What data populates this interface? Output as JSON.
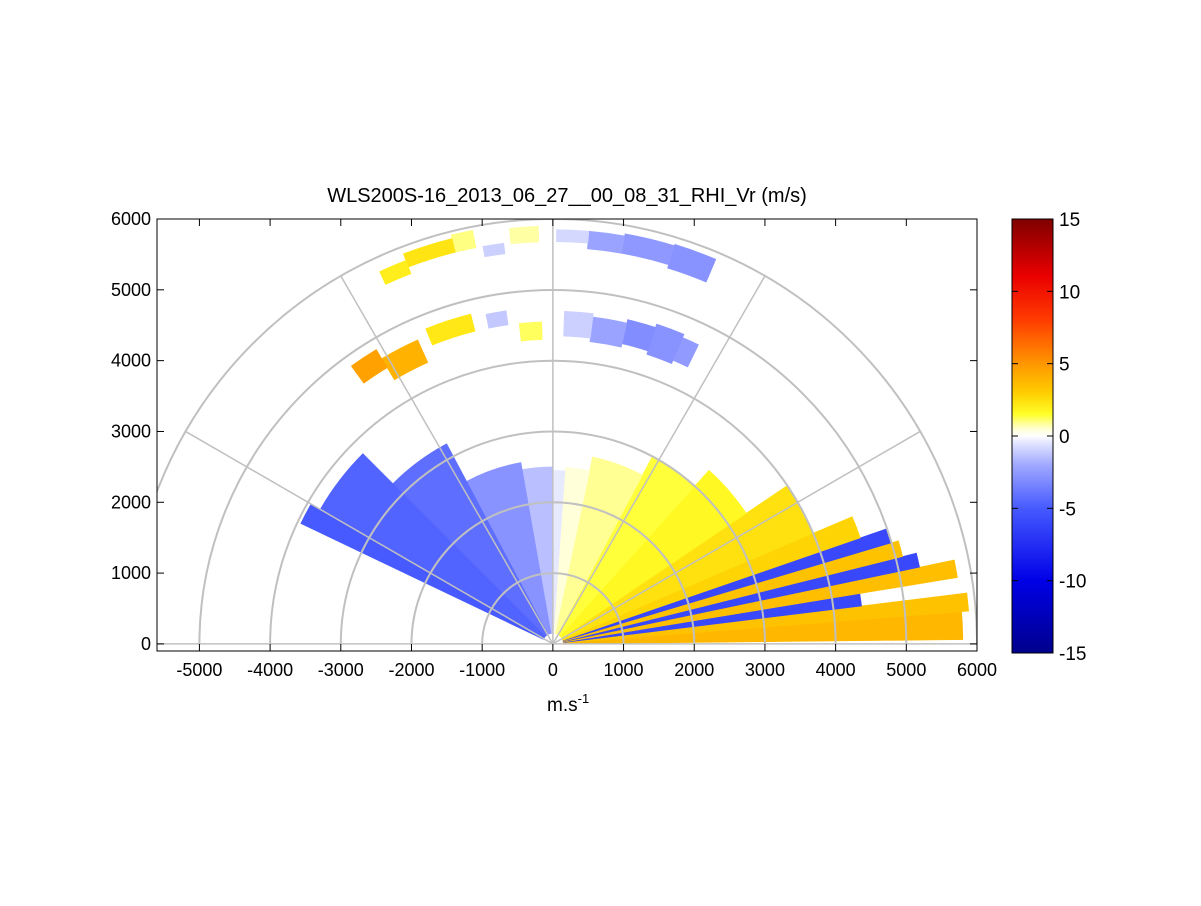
{
  "chart_data": {
    "type": "heatmap",
    "subtype": "polar-rhi-sector",
    "title": "WLS200S-16_2013_06_27__00_08_31_RHI_Vr (m/s)",
    "xlabel_main": "m.s",
    "xlabel_sup": "-1",
    "ylabel": "",
    "xlim": [
      -5600,
      6000
    ],
    "ylim": [
      -100,
      6000
    ],
    "xticks": [
      -5000,
      -4000,
      -3000,
      -2000,
      -1000,
      0,
      1000,
      2000,
      3000,
      4000,
      5000,
      6000
    ],
    "yticks": [
      0,
      1000,
      2000,
      3000,
      4000,
      5000,
      6000
    ],
    "grid": true,
    "polar_grid": {
      "range_rings_m": [
        1000,
        2000,
        3000,
        4000,
        5000,
        6000
      ],
      "spokes_deg": [
        0,
        30,
        60,
        90,
        120,
        150,
        180
      ]
    },
    "colorbar": {
      "min": -15,
      "max": 15,
      "ticks": [
        15,
        10,
        5,
        0,
        -5,
        -10,
        -15
      ],
      "position": "right",
      "colormap": "blue-white-yellow-red"
    },
    "colors": {
      "grid": "#c0c0c0",
      "neg_strong": "#0000a0",
      "neg_mid": "#3c4cff",
      "neg_light": "#c8ccff",
      "zero": "#ffffff",
      "pos_light": "#ffff60",
      "pos_mid": "#ffb400",
      "pos_strong": "#ff2000",
      "pos_max": "#800000"
    },
    "sectors": [
      {
        "az_from": 0.6,
        "az_to": 4.5,
        "r_from": 150,
        "r_to": 5800,
        "vr": 3.8
      },
      {
        "az_from": 4.5,
        "az_to": 7.0,
        "r_from": 150,
        "r_to": 5900,
        "vr": 3.4
      },
      {
        "az_from": 7.0,
        "az_to": 9.3,
        "r_from": 150,
        "r_to": 4400,
        "vr": -6.0
      },
      {
        "az_from": 9.3,
        "az_to": 11.8,
        "r_from": 150,
        "r_to": 5800,
        "vr": 3.5
      },
      {
        "az_from": 11.8,
        "az_to": 14.0,
        "r_from": 150,
        "r_to": 5300,
        "vr": -6.0
      },
      {
        "az_from": 14.0,
        "az_to": 16.6,
        "r_from": 150,
        "r_to": 5100,
        "vr": 3.4
      },
      {
        "az_from": 16.6,
        "az_to": 19.0,
        "r_from": 150,
        "r_to": 5000,
        "vr": -6.0
      },
      {
        "az_from": 19.0,
        "az_to": 23.0,
        "r_from": 150,
        "r_to": 4600,
        "vr": 2.8
      },
      {
        "az_from": 23.0,
        "az_to": 34.0,
        "r_from": 150,
        "r_to": 4000,
        "vr": 2.4
      },
      {
        "az_from": 34.0,
        "az_to": 48.0,
        "r_from": 150,
        "r_to": 3300,
        "vr": 1.7
      },
      {
        "az_from": 48.0,
        "az_to": 62.0,
        "r_from": 150,
        "r_to": 3000,
        "vr": 1.4
      },
      {
        "az_from": 62.0,
        "az_to": 78.0,
        "r_from": 150,
        "r_to": 2700,
        "vr": 0.9
      },
      {
        "az_from": 78.0,
        "az_to": 86.0,
        "r_from": 150,
        "r_to": 2500,
        "vr": 0.4
      },
      {
        "az_from": 86.0,
        "az_to": 90.0,
        "r_from": 150,
        "r_to": 2450,
        "vr": -0.4
      },
      {
        "az_from": 90.0,
        "az_to": 100.0,
        "r_from": 150,
        "r_to": 2500,
        "vr": -1.4
      },
      {
        "az_from": 100.0,
        "az_to": 118.0,
        "r_from": 150,
        "r_to": 2600,
        "vr": -2.8
      },
      {
        "az_from": 118.0,
        "az_to": 135.0,
        "r_from": 150,
        "r_to": 3200,
        "vr": -4.2
      },
      {
        "az_from": 135.0,
        "az_to": 150.0,
        "r_from": 150,
        "r_to": 3800,
        "vr": -4.6
      },
      {
        "az_from": 150.0,
        "az_to": 154.5,
        "r_from": 150,
        "r_to": 3950,
        "vr": -5.0
      },
      {
        "az_from": 64.0,
        "az_to": 67.0,
        "r_from": 4350,
        "r_to": 4700,
        "vr": -2.5
      },
      {
        "az_from": 67.0,
        "az_to": 72.0,
        "r_from": 4300,
        "r_to": 4750,
        "vr": -2.8
      },
      {
        "az_from": 72.0,
        "az_to": 77.0,
        "r_from": 4350,
        "r_to": 4700,
        "vr": -3.0
      },
      {
        "az_from": 77.0,
        "az_to": 83.0,
        "r_from": 4300,
        "r_to": 4650,
        "vr": -2.2
      },
      {
        "az_from": 83.0,
        "az_to": 88.0,
        "r_from": 4350,
        "r_to": 4700,
        "vr": -1.0
      },
      {
        "az_from": 92.0,
        "az_to": 96.0,
        "r_from": 4300,
        "r_to": 4550,
        "vr": 1.2
      },
      {
        "az_from": 98.0,
        "az_to": 101.5,
        "r_from": 4550,
        "r_to": 4750,
        "vr": -1.2
      },
      {
        "az_from": 104.0,
        "az_to": 112.0,
        "r_from": 4550,
        "r_to": 4800,
        "vr": 2.2
      },
      {
        "az_from": 114.0,
        "az_to": 121.0,
        "r_from": 4350,
        "r_to": 4700,
        "vr": 4.0
      },
      {
        "az_from": 121.0,
        "az_to": 126.0,
        "r_from": 4550,
        "r_to": 4850,
        "vr": 4.6
      },
      {
        "az_from": 67.0,
        "az_to": 73.0,
        "r_from": 5550,
        "r_to": 5900,
        "vr": -2.8
      },
      {
        "az_from": 73.0,
        "az_to": 80.0,
        "r_from": 5600,
        "r_to": 5880,
        "vr": -2.6
      },
      {
        "az_from": 80.0,
        "az_to": 85.0,
        "r_from": 5600,
        "r_to": 5850,
        "vr": -2.2
      },
      {
        "az_from": 85.0,
        "az_to": 89.5,
        "r_from": 5680,
        "r_to": 5850,
        "vr": -0.8
      },
      {
        "az_from": 92.0,
        "az_to": 96.0,
        "r_from": 5680,
        "r_to": 5900,
        "vr": 0.8
      },
      {
        "az_from": 97.0,
        "az_to": 100.0,
        "r_from": 5550,
        "r_to": 5700,
        "vr": -1.0
      },
      {
        "az_from": 101.0,
        "az_to": 104.0,
        "r_from": 5700,
        "r_to": 5950,
        "vr": 1.0
      },
      {
        "az_from": 104.0,
        "az_to": 111.0,
        "r_from": 5700,
        "r_to": 5900,
        "vr": 2.3
      },
      {
        "az_from": 111.0,
        "az_to": 115.0,
        "r_from": 5600,
        "r_to": 5800,
        "vr": 2.0
      }
    ]
  }
}
